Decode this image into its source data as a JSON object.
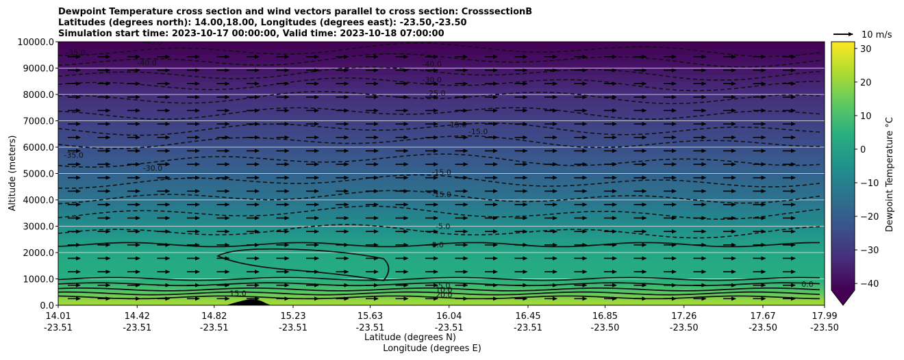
{
  "chart_data": {
    "type": "heatmap",
    "title_lines": [
      "Dewpoint Temperature cross section and wind vectors parallel to cross section: CrosssectionB",
      "Latitudes (degrees north): 14.00,18.00, Longitudes (degrees east): -23.50,-23.50",
      "Simulation start time: 2023-10-17 00:00:00, Valid time: 2023-10-18 07:00:00"
    ],
    "xlabel": "Latitude (degrees N)",
    "xlabel2": "Longitude (degrees E)",
    "ylabel": "Altitude (meters)",
    "ylim": [
      0,
      10000
    ],
    "yticks": [
      "0.0",
      "1000.0",
      "2000.0",
      "3000.0",
      "4000.0",
      "5000.0",
      "6000.0",
      "7000.0",
      "8000.0",
      "9000.0",
      "10000.0"
    ],
    "xtick_lat": [
      "14.01",
      "14.42",
      "14.82",
      "15.23",
      "15.63",
      "16.04",
      "16.45",
      "16.85",
      "17.26",
      "17.67",
      "17.99"
    ],
    "xtick_lon": [
      "-23.51",
      "-23.51",
      "-23.51",
      "-23.51",
      "-23.51",
      "-23.51",
      "-23.51",
      "-23.50",
      "-23.50",
      "-23.50",
      "-23.50"
    ],
    "xtick_values": [
      14.01,
      14.42,
      14.82,
      15.23,
      15.63,
      16.04,
      16.45,
      16.85,
      17.26,
      17.67,
      17.99
    ],
    "xlim": [
      14.01,
      17.99
    ],
    "grid": "horizontal",
    "colorbar": {
      "label": "Dewpoint Temperature °C",
      "range": [
        -42,
        32
      ],
      "ticks": [
        "30",
        "20",
        "10",
        "0",
        "−10",
        "−20",
        "−30",
        "−40"
      ],
      "tick_values": [
        30,
        20,
        10,
        0,
        -10,
        -20,
        -30,
        -40
      ],
      "extend": "min",
      "colormap": "viridis"
    },
    "quiver_key": "10 m/s",
    "contour_labels": [
      {
        "text": "-40.0",
        "lat": 15.9,
        "alt": 9050
      },
      {
        "text": "-30.0",
        "lat": 15.9,
        "alt": 8450
      },
      {
        "text": "-25.0",
        "lat": 15.92,
        "alt": 7950
      },
      {
        "text": "-15.0",
        "lat": 16.03,
        "alt": 6750
      },
      {
        "text": "-15.0",
        "lat": 16.14,
        "alt": 6500
      },
      {
        "text": "-15.0",
        "lat": 15.95,
        "alt": 4950
      },
      {
        "text": "-15.0",
        "lat": 15.95,
        "alt": 4100
      },
      {
        "text": "-5.0",
        "lat": 15.97,
        "alt": 2900
      },
      {
        "text": "0.0",
        "lat": 15.95,
        "alt": 2200
      },
      {
        "text": "-5.0",
        "lat": 15.97,
        "alt": 650
      },
      {
        "text": "10.0",
        "lat": 15.97,
        "alt": 480
      },
      {
        "text": "20.0",
        "lat": 15.97,
        "alt": 300
      },
      {
        "text": "15.0",
        "lat": 14.9,
        "alt": 350
      },
      {
        "text": "-30.0",
        "lat": 14.45,
        "alt": 5100
      },
      {
        "text": "-35.0",
        "lat": 14.04,
        "alt": 5600
      },
      {
        "text": "-35.0",
        "lat": 14.05,
        "alt": 9500
      },
      {
        "text": "-40.0",
        "lat": 14.45,
        "alt": 9900
      },
      {
        "text": "-40.0",
        "lat": 14.42,
        "alt": 9100
      },
      {
        "text": "0.0",
        "lat": 17.87,
        "alt": 700
      }
    ],
    "dewpoint_profile": [
      {
        "alt": 0,
        "t": 22
      },
      {
        "alt": 200,
        "t": 20
      },
      {
        "alt": 500,
        "t": 13
      },
      {
        "alt": 800,
        "t": 7
      },
      {
        "alt": 1000,
        "t": 4
      },
      {
        "alt": 1500,
        "t": 3
      },
      {
        "alt": 2000,
        "t": 2
      },
      {
        "alt": 2500,
        "t": -2
      },
      {
        "alt": 3000,
        "t": -6
      },
      {
        "alt": 3500,
        "t": -10
      },
      {
        "alt": 4000,
        "t": -14
      },
      {
        "alt": 5000,
        "t": -19
      },
      {
        "alt": 6000,
        "t": -24
      },
      {
        "alt": 7000,
        "t": -28
      },
      {
        "alt": 8000,
        "t": -32
      },
      {
        "alt": 9000,
        "t": -38
      },
      {
        "alt": 10000,
        "t": -42
      }
    ]
  }
}
